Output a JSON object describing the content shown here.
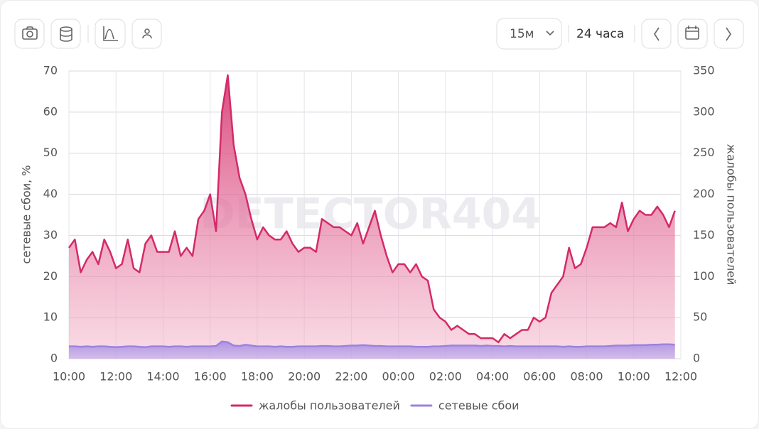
{
  "toolbar": {
    "interval": "15м",
    "range": "24 часа"
  },
  "chart_data": {
    "type": "line",
    "watermark": "DETECTOR404",
    "ylabel": "сетевые сбои, %",
    "y2label": "жалобы пользователей",
    "xlim": [
      0,
      26
    ],
    "xticks": [
      {
        "value": 0,
        "label": "10:00"
      },
      {
        "value": 2,
        "label": "12:00"
      },
      {
        "value": 4,
        "label": "14:00"
      },
      {
        "value": 6,
        "label": "16:00"
      },
      {
        "value": 8,
        "label": "18:00"
      },
      {
        "value": 10,
        "label": "20:00"
      },
      {
        "value": 12,
        "label": "22:00"
      },
      {
        "value": 14,
        "label": "00:00"
      },
      {
        "value": 16,
        "label": "02:00"
      },
      {
        "value": 18,
        "label": "04:00"
      },
      {
        "value": 20,
        "label": "06:00"
      },
      {
        "value": 22,
        "label": "08:00"
      },
      {
        "value": 24,
        "label": "10:00"
      },
      {
        "value": 26,
        "label": "12:00"
      }
    ],
    "ylim": [
      0,
      70
    ],
    "yticks": [
      0,
      10,
      20,
      30,
      40,
      50,
      60,
      70
    ],
    "y2lim": [
      0,
      350
    ],
    "y2ticks": [
      0,
      50,
      100,
      150,
      200,
      250,
      300,
      350
    ],
    "grid": true,
    "legend": "bottom",
    "x": [
      0,
      0.25,
      0.5,
      0.75,
      1,
      1.25,
      1.5,
      1.75,
      2,
      2.25,
      2.5,
      2.75,
      3,
      3.25,
      3.5,
      3.75,
      4,
      4.25,
      4.5,
      4.75,
      5,
      5.25,
      5.5,
      5.75,
      6,
      6.25,
      6.5,
      6.75,
      7,
      7.25,
      7.5,
      7.75,
      8,
      8.25,
      8.5,
      8.75,
      9,
      9.25,
      9.5,
      9.75,
      10,
      10.25,
      10.5,
      10.75,
      11,
      11.25,
      11.5,
      11.75,
      12,
      12.25,
      12.5,
      12.75,
      13,
      13.25,
      13.5,
      13.75,
      14,
      14.25,
      14.5,
      14.75,
      15,
      15.25,
      15.5,
      15.75,
      16,
      16.25,
      16.5,
      16.75,
      17,
      17.25,
      17.5,
      17.75,
      18,
      18.25,
      18.5,
      18.75,
      19,
      19.25,
      19.5,
      19.75,
      20,
      20.25,
      20.5,
      20.75,
      21,
      21.25,
      21.5,
      21.75,
      22,
      22.25,
      22.5,
      22.75,
      23,
      23.25,
      23.5,
      23.75,
      24,
      24.25,
      24.5,
      24.75,
      25,
      25.25,
      25.5,
      25.75
    ],
    "series": [
      {
        "name": "жалобы пользователей",
        "color": "#d42a68",
        "axis": "y2",
        "values": [
          135,
          145,
          105,
          120,
          130,
          115,
          145,
          130,
          110,
          115,
          145,
          110,
          105,
          140,
          150,
          130,
          130,
          130,
          155,
          125,
          135,
          125,
          170,
          180,
          200,
          155,
          300,
          345,
          260,
          220,
          200,
          170,
          145,
          160,
          150,
          145,
          145,
          155,
          140,
          130,
          135,
          135,
          130,
          170,
          165,
          160,
          160,
          155,
          150,
          165,
          140,
          160,
          180,
          150,
          125,
          105,
          115,
          115,
          105,
          115,
          100,
          95,
          60,
          50,
          45,
          35,
          40,
          35,
          30,
          30,
          25,
          25,
          25,
          20,
          30,
          25,
          30,
          35,
          35,
          50,
          45,
          50,
          80,
          90,
          100,
          135,
          110,
          115,
          135,
          160,
          160,
          160,
          165,
          160,
          190,
          155,
          170,
          180,
          175,
          175,
          185,
          175,
          160,
          180
        ]
      },
      {
        "name": "сетевые сбои",
        "color": "#9c82e0",
        "values": [
          3,
          3,
          2.9,
          3,
          2.9,
          3,
          3,
          2.9,
          2.8,
          2.9,
          3,
          3,
          2.9,
          2.8,
          3,
          3,
          3,
          2.9,
          3,
          3,
          2.9,
          3,
          3,
          3,
          3,
          3.1,
          4.2,
          4,
          3.2,
          3.1,
          3.4,
          3.2,
          3,
          3,
          3,
          2.9,
          3,
          2.9,
          2.9,
          3,
          3,
          3,
          3,
          3.1,
          3.1,
          3,
          3,
          3.1,
          3.2,
          3.2,
          3.3,
          3.2,
          3.1,
          3.1,
          3,
          3,
          3,
          3,
          3,
          2.9,
          2.9,
          2.9,
          3,
          3,
          3.1,
          3.2,
          3.2,
          3.2,
          3.2,
          3.2,
          3.1,
          3.2,
          3.1,
          3.1,
          3,
          3.1,
          3,
          3,
          3,
          3,
          3,
          3,
          3,
          3,
          2.9,
          3,
          2.9,
          2.9,
          3,
          3,
          3,
          3,
          3.1,
          3.2,
          3.2,
          3.2,
          3.3,
          3.3,
          3.3,
          3.4,
          3.4,
          3.5,
          3.5,
          3.4
        ]
      }
    ]
  }
}
